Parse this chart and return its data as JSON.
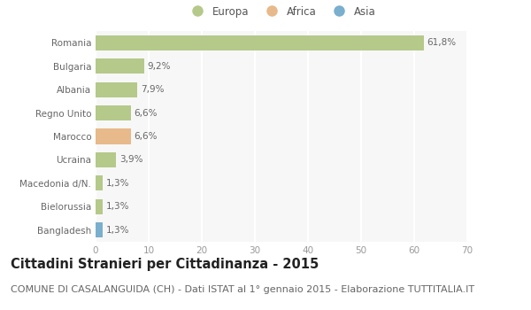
{
  "countries": [
    "Romania",
    "Bulgaria",
    "Albania",
    "Regno Unito",
    "Marocco",
    "Ucraina",
    "Macedonia d/N.",
    "Bielorussia",
    "Bangladesh"
  ],
  "values": [
    61.8,
    9.2,
    7.9,
    6.6,
    6.6,
    3.9,
    1.3,
    1.3,
    1.3
  ],
  "labels": [
    "61,8%",
    "9,2%",
    "7,9%",
    "6,6%",
    "6,6%",
    "3,9%",
    "1,3%",
    "1,3%",
    "1,3%"
  ],
  "continents": [
    "Europa",
    "Europa",
    "Europa",
    "Europa",
    "Africa",
    "Europa",
    "Europa",
    "Europa",
    "Asia"
  ],
  "bar_colors": [
    "#b5c98a",
    "#b5c98a",
    "#b5c98a",
    "#b5c98a",
    "#e8b98a",
    "#b5c98a",
    "#b5c98a",
    "#b5c98a",
    "#7aafce"
  ],
  "legend": [
    {
      "label": "Europa",
      "color": "#b5c98a"
    },
    {
      "label": "Africa",
      "color": "#e8b98a"
    },
    {
      "label": "Asia",
      "color": "#7aafce"
    }
  ],
  "xlim": [
    0,
    70
  ],
  "xticks": [
    0,
    10,
    20,
    30,
    40,
    50,
    60,
    70
  ],
  "title": "Cittadini Stranieri per Cittadinanza - 2015",
  "subtitle": "COMUNE DI CASALANGUIDA (CH) - Dati ISTAT al 1° gennaio 2015 - Elaborazione TUTTITALIA.IT",
  "bg_color": "#ffffff",
  "plot_bg_color": "#f7f7f7",
  "grid_color": "#ffffff",
  "title_fontsize": 10.5,
  "subtitle_fontsize": 8,
  "label_fontsize": 7.5,
  "tick_fontsize": 7.5,
  "legend_fontsize": 8.5
}
